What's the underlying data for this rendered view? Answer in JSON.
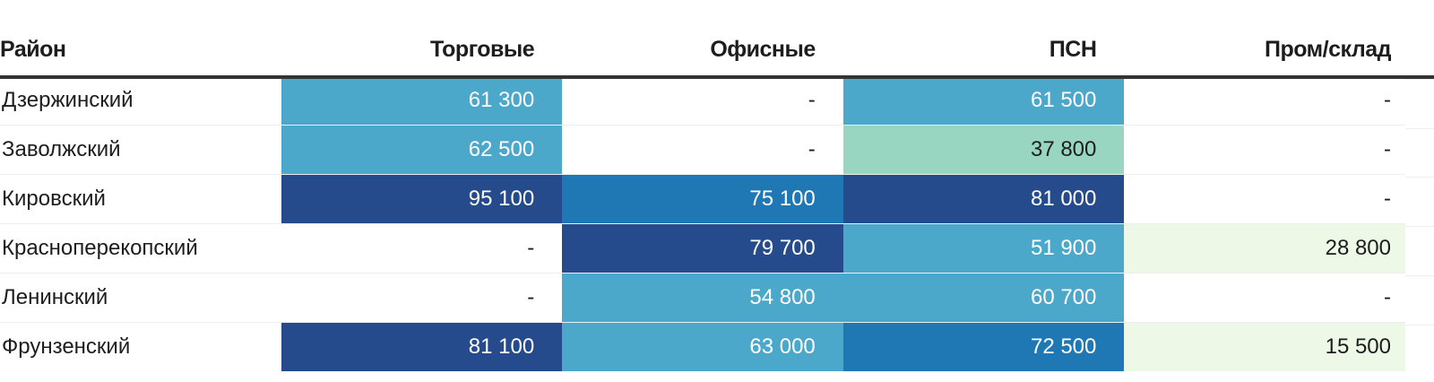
{
  "headers": [
    "Район",
    "Торговые",
    "Офисные",
    "ПСН",
    "Пром/склад"
  ],
  "rows": [
    [
      "Дзержинский",
      "61 300",
      "-",
      "61 500",
      "-"
    ],
    [
      "Заволжский",
      "62 500",
      "-",
      "37 800",
      "-"
    ],
    [
      "Кировский",
      "95 100",
      "75 100",
      "81 000",
      "-"
    ],
    [
      "Красноперекопский",
      "-",
      "79 700",
      "51 900",
      "28 800"
    ],
    [
      "Ленинский",
      "-",
      "54 800",
      "60 700",
      "-"
    ],
    [
      "Фрунзенский",
      "81 100",
      "63 000",
      "72 500",
      "15 500"
    ]
  ],
  "colors": {
    "dark": "#254b8c",
    "mid": "#1f78b4",
    "light": "#4ba8cb",
    "mint": "#98d6c1",
    "pale": "#eef8e6"
  }
}
